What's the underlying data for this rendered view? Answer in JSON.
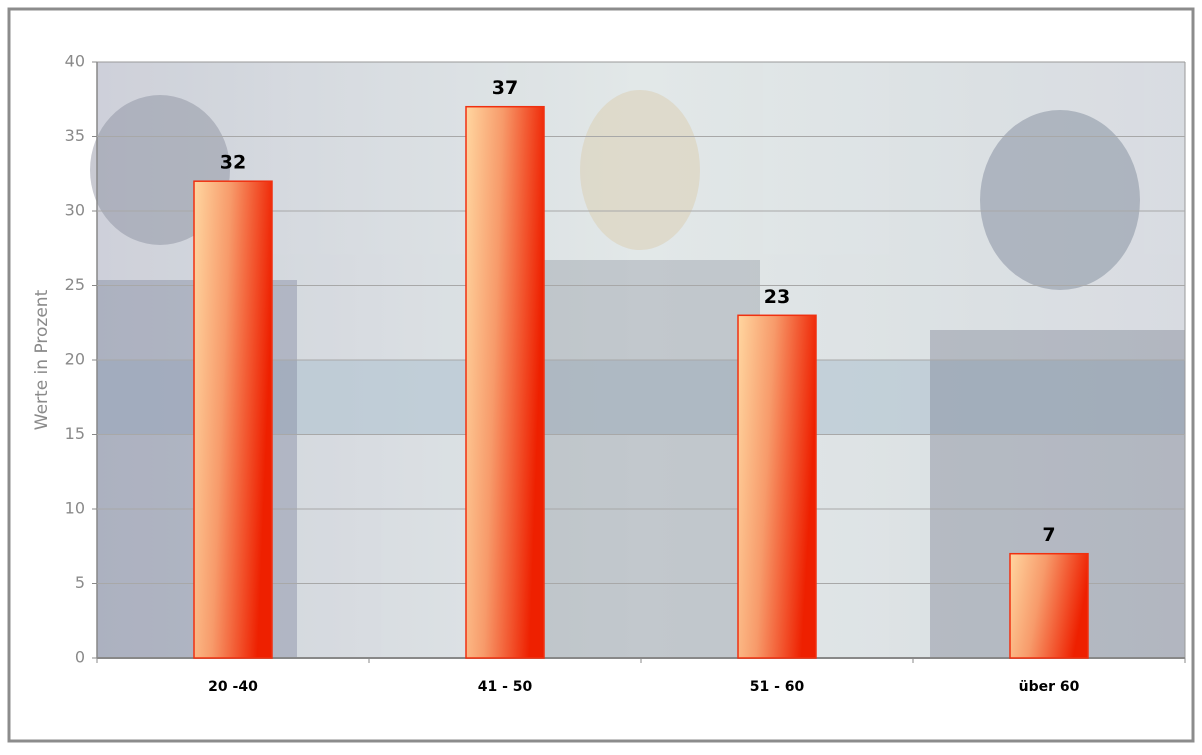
{
  "chart_data": {
    "type": "bar",
    "y_label": "Werte in Prozent",
    "categories": [
      "20 -40",
      "41 - 50",
      "51 - 60",
      "über 60"
    ],
    "values": [
      32,
      37,
      23,
      7
    ],
    "color": "#f03010",
    "ylim": [
      0,
      40
    ],
    "yticks": [
      0,
      5,
      10,
      15,
      20,
      25,
      30,
      35,
      40
    ],
    "grid": true
  }
}
